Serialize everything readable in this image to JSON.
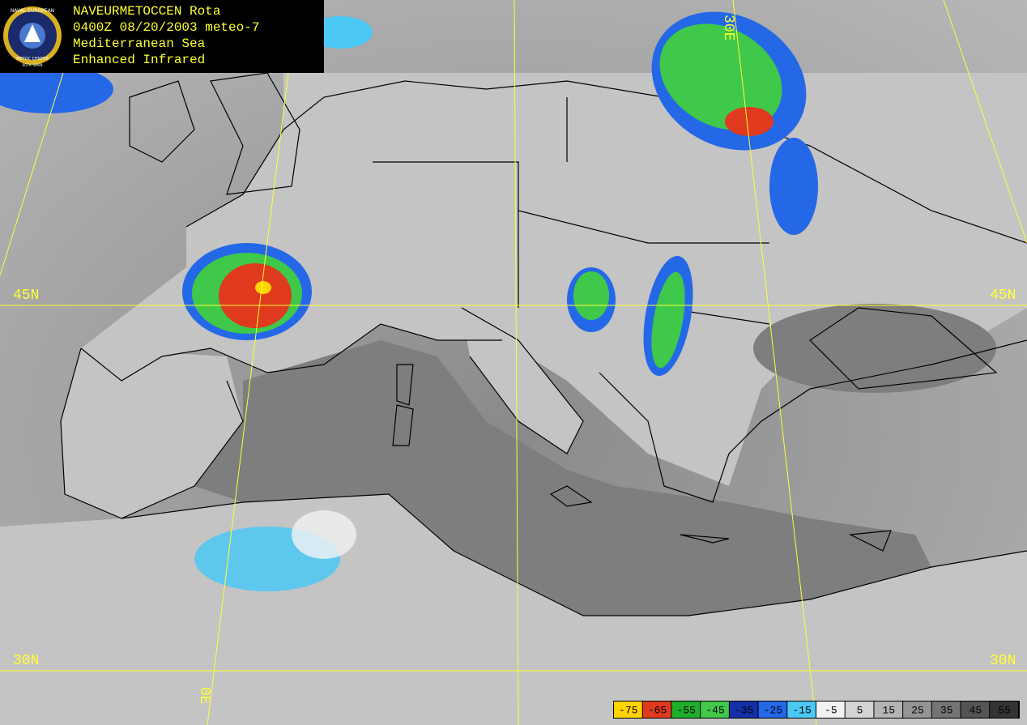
{
  "header": {
    "lines": [
      "NAVEURMETOCCEN Rota",
      "0400Z 08/20/2003 meteo-7",
      "Mediterranean Sea",
      "Enhanced Infrared"
    ],
    "logo_text": [
      "NAVAL EUROPEAN",
      "METOC CENTER",
      "ROTA, SPAIN"
    ]
  },
  "grid_labels": {
    "lat_45": "45N",
    "lat_30": "30N",
    "lon_0": "0E",
    "lon_30": "30E"
  },
  "legend": {
    "values": [
      -75,
      -65,
      -55,
      -45,
      -35,
      -25,
      -15,
      -5,
      5,
      15,
      25,
      35,
      45,
      55
    ],
    "colors": [
      "#ffd400",
      "#e03a1e",
      "#1fae2c",
      "#3fc84a",
      "#1430a8",
      "#2468e8",
      "#4cc8f4",
      "#f2f2f2",
      "#d4d4d4",
      "#b4b4b4",
      "#949494",
      "#747474",
      "#545454",
      "#343434"
    ]
  }
}
